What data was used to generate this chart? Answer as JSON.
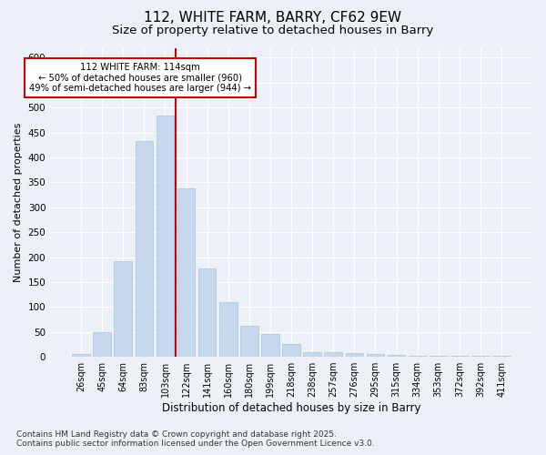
{
  "title": "112, WHITE FARM, BARRY, CF62 9EW",
  "subtitle": "Size of property relative to detached houses in Barry",
  "xlabel": "Distribution of detached houses by size in Barry",
  "ylabel": "Number of detached properties",
  "categories": [
    "26sqm",
    "45sqm",
    "64sqm",
    "83sqm",
    "103sqm",
    "122sqm",
    "141sqm",
    "160sqm",
    "180sqm",
    "199sqm",
    "218sqm",
    "238sqm",
    "257sqm",
    "276sqm",
    "295sqm",
    "315sqm",
    "334sqm",
    "353sqm",
    "372sqm",
    "392sqm",
    "411sqm"
  ],
  "values": [
    5,
    50,
    192,
    432,
    484,
    338,
    178,
    110,
    62,
    45,
    25,
    10,
    10,
    8,
    5,
    3,
    2,
    2,
    2,
    2,
    2
  ],
  "bar_color": "#c5d8ed",
  "bar_edge_color": "#aac4de",
  "bar_width": 0.85,
  "vline_x_index": 5,
  "vline_color": "#cc0000",
  "annotation_line1": "112 WHITE FARM: 114sqm",
  "annotation_line2": "← 50% of detached houses are smaller (960)",
  "annotation_line3": "49% of semi-detached houses are larger (944) →",
  "annotation_box_color": "#cc0000",
  "ylim": [
    0,
    620
  ],
  "yticks": [
    0,
    50,
    100,
    150,
    200,
    250,
    300,
    350,
    400,
    450,
    500,
    550,
    600
  ],
  "background_color": "#edf1f7",
  "grid_color": "#ffffff",
  "footer": "Contains HM Land Registry data © Crown copyright and database right 2025.\nContains public sector information licensed under the Open Government Licence v3.0.",
  "title_fontsize": 11,
  "subtitle_fontsize": 9.5,
  "tick_fontsize": 7,
  "ylabel_fontsize": 8,
  "xlabel_fontsize": 8.5,
  "footer_fontsize": 6.5
}
